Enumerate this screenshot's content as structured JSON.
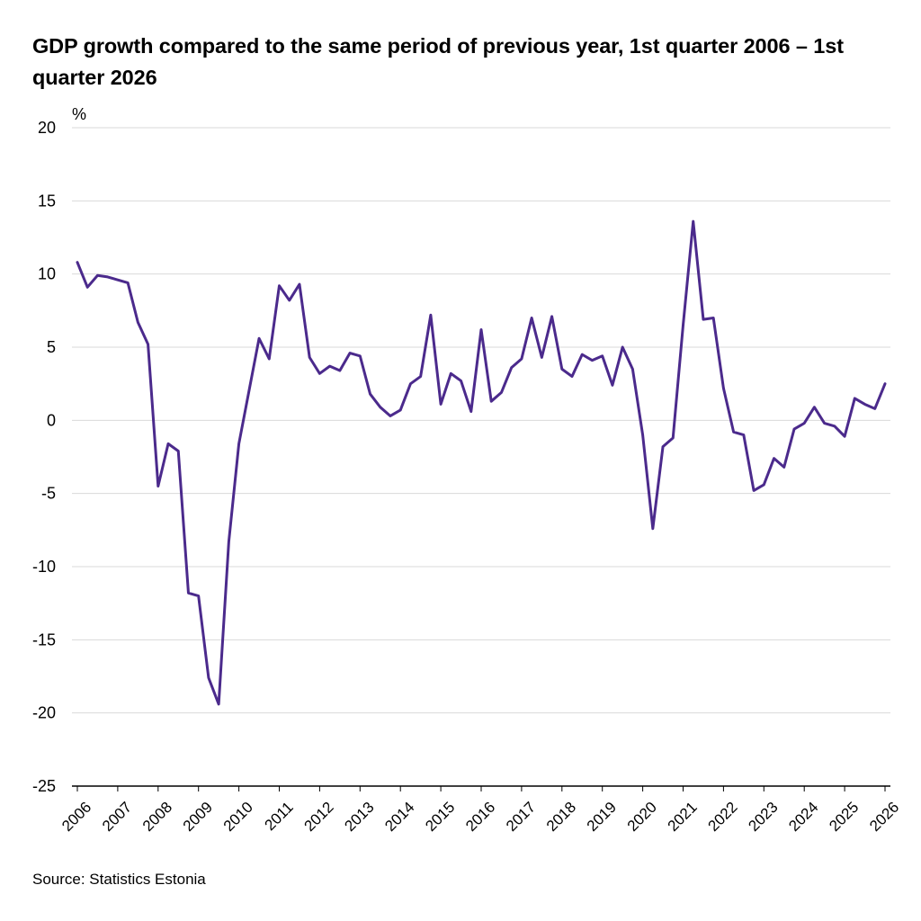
{
  "title": "GDP growth compared to the same period of previous year, 1st quarter 2006 – 1st quarter 2026",
  "source": "Source: Statistics Estonia",
  "chart_data": {
    "type": "line",
    "title": "GDP growth compared to the same period of previous year, 1st quarter 2006 – 1st quarter 2026",
    "ylabel": "%",
    "xlabel": "",
    "ylim": [
      -25,
      20
    ],
    "yticks": [
      20,
      15,
      10,
      5,
      0,
      -5,
      -10,
      -15,
      -20,
      -25
    ],
    "xtick_labels": [
      "2006",
      "2007",
      "2008",
      "2009",
      "2010",
      "2011",
      "2012",
      "2013",
      "2014",
      "2015",
      "2016",
      "2017",
      "2018",
      "2019",
      "2020",
      "2021",
      "2022",
      "2023",
      "2024",
      "2025",
      "2026"
    ],
    "grid": "horizontal",
    "line_color": "#4b2a8c",
    "series": [
      {
        "name": "",
        "values": [
          10.8,
          9.1,
          9.9,
          9.8,
          9.6,
          9.4,
          6.7,
          5.2,
          -4.5,
          -1.6,
          -2.1,
          -11.8,
          -12.0,
          -17.6,
          -19.4,
          -8.3,
          -1.6,
          2.0,
          5.6,
          4.2,
          9.2,
          8.2,
          9.3,
          4.3,
          3.2,
          3.7,
          3.4,
          4.6,
          4.4,
          1.8,
          0.9,
          0.3,
          0.7,
          2.5,
          3.0,
          7.2,
          1.1,
          3.2,
          2.7,
          0.6,
          6.2,
          1.3,
          1.9,
          3.6,
          4.2,
          7.0,
          4.3,
          7.1,
          3.5,
          3.0,
          4.5,
          4.1,
          4.4,
          2.4,
          5.0,
          3.5,
          -1.0,
          -7.4,
          -1.8,
          -1.2,
          6.5,
          13.6,
          6.9,
          7.0,
          2.2,
          -0.8,
          -1.0,
          -4.8,
          -4.4,
          -2.6,
          -3.2,
          -0.6,
          -0.2,
          0.9,
          -0.2,
          -0.4,
          -1.1,
          1.5,
          1.1,
          0.8,
          2.5
        ]
      }
    ]
  }
}
